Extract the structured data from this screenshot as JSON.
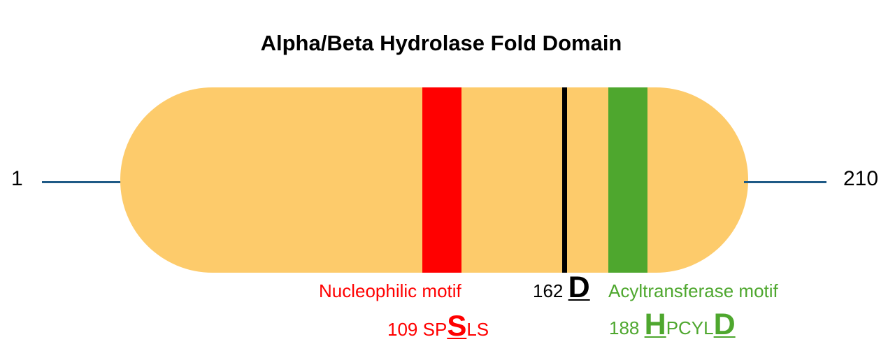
{
  "title": "Alpha/Beta Hydrolase Fold Domain",
  "protein": {
    "start_label": "1",
    "end_label": "210",
    "length": 210,
    "domain_color": "#FDCB6B",
    "line_color": "#1F5A86"
  },
  "features": {
    "nucleophilic": {
      "name": "Nucleophilic motif",
      "color": "#FF0000",
      "position": "109",
      "seq_prefix": "SP",
      "seq_highlight": "S",
      "seq_suffix": "LS"
    },
    "aspartate": {
      "position": "162",
      "residue": "D",
      "color": "#000000"
    },
    "acyltransferase": {
      "name": "Acyltransferase motif",
      "color": "#4EA72E",
      "position": "188",
      "seq_highlight": "H",
      "seq_middle": "PCYL",
      "seq_highlight_end": "D"
    }
  }
}
